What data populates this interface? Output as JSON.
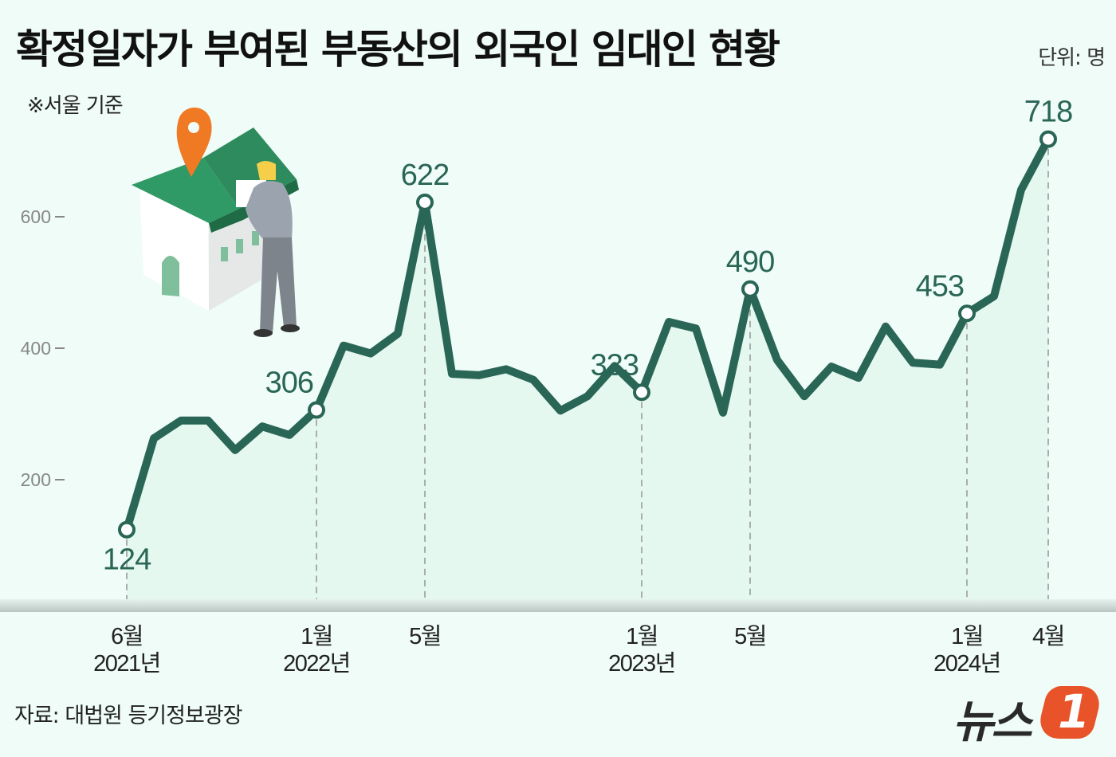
{
  "header": {
    "title": "확정일자가 부여된 부동산의 외국인 임대인 현황",
    "note": "※서울 기준",
    "unit": "단위: 명"
  },
  "footer": {
    "source": "자료: 대법원 등기정보광장",
    "logo_text": "뉴스",
    "logo_number": "1"
  },
  "colors": {
    "background": "#effcf7",
    "line": "#2a6656",
    "area_fill": "#e3f7ee",
    "logo_accent": "#e8532a"
  },
  "chart_data": {
    "type": "line",
    "title": "확정일자가 부여된 부동산의 외국인 임대인 현황",
    "subtitle": "※서울 기준",
    "xlabel": "",
    "ylabel": "단위: 명",
    "ylim": [
      0,
      760
    ],
    "yticks": [
      200,
      400,
      600
    ],
    "grid": false,
    "legend": null,
    "x": [
      "2021-06",
      "2021-07",
      "2021-08",
      "2021-09",
      "2021-10",
      "2021-11",
      "2021-12",
      "2022-01",
      "2022-02",
      "2022-03",
      "2022-04",
      "2022-05",
      "2022-06",
      "2022-07",
      "2022-08",
      "2022-09",
      "2022-10",
      "2022-11",
      "2022-12",
      "2023-01",
      "2023-02",
      "2023-03",
      "2023-04",
      "2023-05",
      "2023-06",
      "2023-07",
      "2023-08",
      "2023-09",
      "2023-10",
      "2023-11",
      "2023-12",
      "2024-01",
      "2024-02",
      "2024-03",
      "2024-04"
    ],
    "values": [
      124,
      263,
      290,
      290,
      245,
      281,
      268,
      306,
      404,
      392,
      422,
      622,
      361,
      359,
      368,
      352,
      305,
      327,
      373,
      333,
      440,
      430,
      302,
      490,
      382,
      327,
      372,
      355,
      433,
      378,
      375,
      453,
      479,
      641,
      718
    ],
    "labeled_points": [
      {
        "index": 0,
        "value": "124",
        "pos": "below"
      },
      {
        "index": 7,
        "value": "306",
        "pos": "above-left"
      },
      {
        "index": 11,
        "value": "622",
        "pos": "above"
      },
      {
        "index": 19,
        "value": "333",
        "pos": "above-left"
      },
      {
        "index": 23,
        "value": "490",
        "pos": "above"
      },
      {
        "index": 31,
        "value": "453",
        "pos": "above-left"
      },
      {
        "index": 34,
        "value": "718",
        "pos": "above"
      }
    ],
    "x_tick_labels": [
      {
        "index": 0,
        "month": "6월",
        "year": "2021년"
      },
      {
        "index": 7,
        "month": "1월",
        "year": "2022년"
      },
      {
        "index": 11,
        "month": "5월",
        "year": ""
      },
      {
        "index": 19,
        "month": "1월",
        "year": "2023년"
      },
      {
        "index": 23,
        "month": "5월",
        "year": ""
      },
      {
        "index": 31,
        "month": "1월",
        "year": "2024년"
      },
      {
        "index": 34,
        "month": "4월",
        "year": ""
      }
    ],
    "ytick_labels": [
      "200",
      "400",
      "600"
    ]
  }
}
